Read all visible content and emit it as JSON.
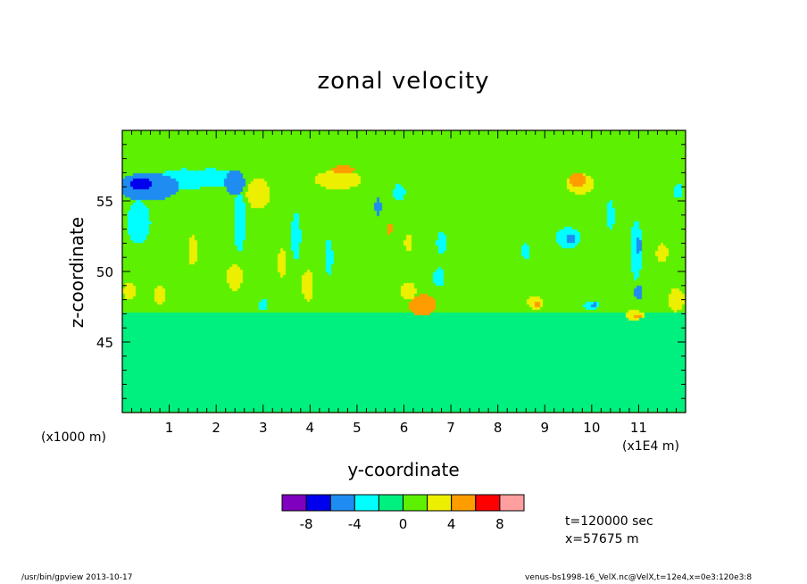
{
  "chart_data": {
    "type": "heatmap",
    "title": "zonal velocity",
    "xlabel": "y-coordinate",
    "ylabel": "z-coordinate",
    "x_unit_left": "(x1000 m)",
    "x_unit_right": "(x1E4 m)",
    "xlim": [
      0,
      12
    ],
    "ylim": [
      40,
      60
    ],
    "xticks": [
      "1",
      "2",
      "3",
      "4",
      "5",
      "6",
      "7",
      "8",
      "9",
      "10",
      "11"
    ],
    "yticks": [
      "45",
      "50",
      "55"
    ],
    "colorbar": {
      "colors": [
        "#7f00bf",
        "#0000ef",
        "#1e8cf0",
        "#00ffff",
        "#00f07f",
        "#5df000",
        "#ecf000",
        "#ff9c00",
        "#ff0000",
        "#ff9e9e"
      ],
      "tick_labels": [
        "-8",
        "-4",
        "0",
        "4",
        "8"
      ],
      "tick_values": [
        -8,
        -4,
        0,
        4,
        8
      ],
      "levels": [
        -10,
        -8,
        -6,
        -4,
        -2,
        0,
        2,
        4,
        6,
        8,
        10
      ]
    },
    "features": [
      {
        "x": 0.4,
        "z": 56.2,
        "rx": 0.25,
        "rz": 0.5,
        "value": -7
      },
      {
        "x": 0.55,
        "z": 56.0,
        "rx": 0.8,
        "rz": 1.2,
        "value": -5
      },
      {
        "x": 1.3,
        "z": 56.5,
        "rx": 0.7,
        "rz": 0.9,
        "value": -3
      },
      {
        "x": 1.9,
        "z": 56.6,
        "rx": 0.6,
        "rz": 0.8,
        "value": -3
      },
      {
        "x": 0.35,
        "z": 53.5,
        "rx": 0.3,
        "rz": 1.8,
        "value": -3
      },
      {
        "x": 2.4,
        "z": 56.3,
        "rx": 0.25,
        "rz": 1.1,
        "value": -5
      },
      {
        "x": 2.5,
        "z": 53.5,
        "rx": 0.15,
        "rz": 2.5,
        "value": -3
      },
      {
        "x": 2.9,
        "z": 55.5,
        "rx": 0.3,
        "rz": 1.3,
        "value": 3
      },
      {
        "x": 4.6,
        "z": 56.5,
        "rx": 0.6,
        "rz": 0.8,
        "value": 3
      },
      {
        "x": 4.7,
        "z": 57.2,
        "rx": 0.3,
        "rz": 0.35,
        "value": 5
      },
      {
        "x": 3.7,
        "z": 52.5,
        "rx": 0.12,
        "rz": 2.0,
        "value": -3
      },
      {
        "x": 3.95,
        "z": 49.0,
        "rx": 0.15,
        "rz": 1.3,
        "value": 3
      },
      {
        "x": 4.4,
        "z": 51.0,
        "rx": 0.1,
        "rz": 1.5,
        "value": -3
      },
      {
        "x": 5.45,
        "z": 54.6,
        "rx": 0.08,
        "rz": 0.8,
        "value": -5
      },
      {
        "x": 5.7,
        "z": 53.0,
        "rx": 0.08,
        "rz": 0.4,
        "value": 5
      },
      {
        "x": 6.1,
        "z": 48.6,
        "rx": 0.2,
        "rz": 0.7,
        "value": 3
      },
      {
        "x": 6.4,
        "z": 47.6,
        "rx": 0.35,
        "rz": 0.9,
        "value": 5
      },
      {
        "x": 5.9,
        "z": 55.6,
        "rx": 0.15,
        "rz": 0.7,
        "value": -3
      },
      {
        "x": 6.8,
        "z": 52.0,
        "rx": 0.12,
        "rz": 1.0,
        "value": -3
      },
      {
        "x": 6.75,
        "z": 49.6,
        "rx": 0.15,
        "rz": 0.8,
        "value": -3
      },
      {
        "x": 9.5,
        "z": 52.4,
        "rx": 0.3,
        "rz": 0.9,
        "value": -3
      },
      {
        "x": 9.55,
        "z": 52.3,
        "rx": 0.12,
        "rz": 0.4,
        "value": -5
      },
      {
        "x": 9.7,
        "z": 56.5,
        "rx": 0.2,
        "rz": 0.6,
        "value": 5
      },
      {
        "x": 9.75,
        "z": 56.2,
        "rx": 0.35,
        "rz": 0.9,
        "value": 3
      },
      {
        "x": 10.4,
        "z": 54.0,
        "rx": 0.1,
        "rz": 1.2,
        "value": -3
      },
      {
        "x": 10.95,
        "z": 51.5,
        "rx": 0.15,
        "rz": 2.5,
        "value": -3
      },
      {
        "x": 11.0,
        "z": 51.8,
        "rx": 0.06,
        "rz": 0.8,
        "value": -5
      },
      {
        "x": 11.0,
        "z": 48.5,
        "rx": 0.1,
        "rz": 0.6,
        "value": -5
      },
      {
        "x": 10.0,
        "z": 47.6,
        "rx": 0.2,
        "rz": 0.4,
        "value": -3
      },
      {
        "x": 10.05,
        "z": 47.6,
        "rx": 0.08,
        "rz": 0.2,
        "value": -5
      },
      {
        "x": 10.9,
        "z": 46.9,
        "rx": 0.25,
        "rz": 0.4,
        "value": 3
      },
      {
        "x": 11.0,
        "z": 46.8,
        "rx": 0.1,
        "rz": 0.2,
        "value": 5
      },
      {
        "x": 8.8,
        "z": 47.8,
        "rx": 0.2,
        "rz": 0.6,
        "value": 3
      },
      {
        "x": 8.85,
        "z": 47.7,
        "rx": 0.08,
        "rz": 0.3,
        "value": 5
      },
      {
        "x": 11.8,
        "z": 48.0,
        "rx": 0.2,
        "rz": 1.0,
        "value": 3
      },
      {
        "x": 11.85,
        "z": 55.7,
        "rx": 0.12,
        "rz": 0.6,
        "value": -3
      },
      {
        "x": 0.15,
        "z": 48.6,
        "rx": 0.15,
        "rz": 0.7,
        "value": 3
      },
      {
        "x": 0.8,
        "z": 48.3,
        "rx": 0.15,
        "rz": 0.8,
        "value": 3
      },
      {
        "x": 1.5,
        "z": 51.5,
        "rx": 0.12,
        "rz": 1.3,
        "value": 3
      },
      {
        "x": 2.4,
        "z": 49.6,
        "rx": 0.2,
        "rz": 1.1,
        "value": 3
      },
      {
        "x": 3.4,
        "z": 50.6,
        "rx": 0.1,
        "rz": 1.2,
        "value": 3
      },
      {
        "x": 6.1,
        "z": 52.0,
        "rx": 0.1,
        "rz": 0.8,
        "value": 3
      },
      {
        "x": 8.6,
        "z": 51.4,
        "rx": 0.12,
        "rz": 0.7,
        "value": -3
      },
      {
        "x": 11.5,
        "z": 51.3,
        "rx": 0.15,
        "rz": 0.8,
        "value": 3
      },
      {
        "x": 3.0,
        "z": 47.6,
        "rx": 0.12,
        "rz": 0.5,
        "value": -3
      }
    ],
    "bands": [
      {
        "z": 43.5,
        "half": 3.5,
        "value": -1
      },
      {
        "z": 52.5,
        "half": 5.5,
        "value": 1
      },
      {
        "z": 59.2,
        "half": 0.8,
        "value": 1
      }
    ]
  },
  "info": {
    "time": "t=120000 sec",
    "position": "x=57675 m"
  },
  "footer": {
    "left": "/usr/bin/gpview  2013-10-17",
    "right": "venus-bs1998-16_VelX.nc@VelX,t=12e4,x=0e3:120e3:8"
  }
}
